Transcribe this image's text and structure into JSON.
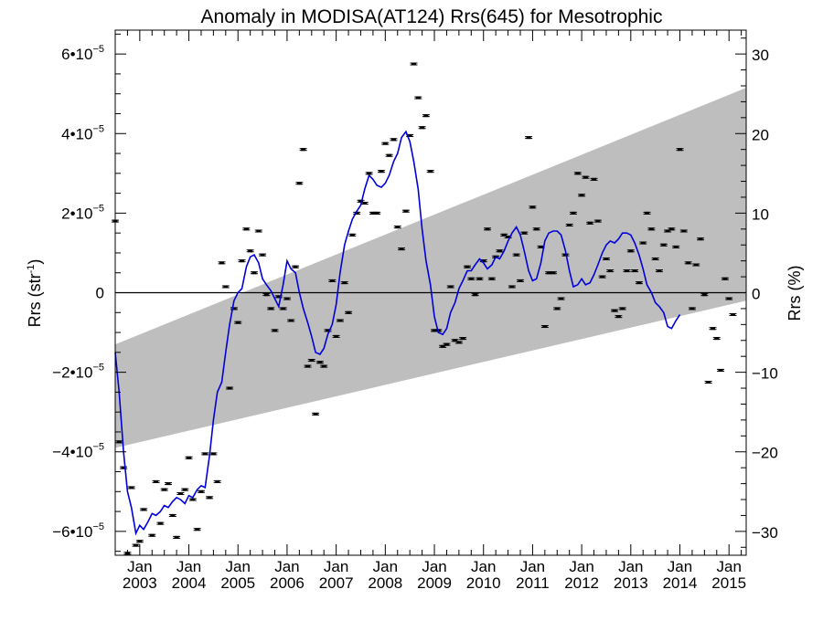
{
  "chart_data": {
    "type": "scatter",
    "title": "Anomaly in MODISA(AT124) Rrs(645) for Mesotrophic",
    "ylabel_left_main": "Rrs (str",
    "ylabel_left_exp": "-1",
    "ylabel_left_close": ")",
    "ylabel_right": "Rrs (%)",
    "x_range": [
      2002.5,
      2015.35
    ],
    "y_left_range": [
      -6.6e-05,
      6.6e-05
    ],
    "y_right_range": [
      -33,
      33
    ],
    "left_ticks": [
      {
        "v": 6e-05,
        "mant": "6•10",
        "exp": "−5"
      },
      {
        "v": 4e-05,
        "mant": "4•10",
        "exp": "−5"
      },
      {
        "v": 2e-05,
        "mant": "2•10",
        "exp": "−5"
      },
      {
        "v": 0,
        "mant": "0",
        "exp": ""
      },
      {
        "v": -2e-05,
        "mant": "−2•10",
        "exp": "−5"
      },
      {
        "v": -4e-05,
        "mant": "−4•10",
        "exp": "−5"
      },
      {
        "v": -6e-05,
        "mant": "−6•10",
        "exp": "−5"
      }
    ],
    "right_ticks": [
      {
        "v": 30,
        "label": "30"
      },
      {
        "v": 20,
        "label": "20"
      },
      {
        "v": 10,
        "label": "10"
      },
      {
        "v": 0,
        "label": "0"
      },
      {
        "v": -10,
        "label": "−10"
      },
      {
        "v": -20,
        "label": "−20"
      },
      {
        "v": -30,
        "label": "−30"
      }
    ],
    "x_ticks": [
      {
        "v": 2003,
        "month": "Jan",
        "year": "2003"
      },
      {
        "v": 2004,
        "month": "Jan",
        "year": "2004"
      },
      {
        "v": 2005,
        "month": "Jan",
        "year": "2005"
      },
      {
        "v": 2006,
        "month": "Jan",
        "year": "2006"
      },
      {
        "v": 2007,
        "month": "Jan",
        "year": "2007"
      },
      {
        "v": 2008,
        "month": "Jan",
        "year": "2008"
      },
      {
        "v": 2009,
        "month": "Jan",
        "year": "2009"
      },
      {
        "v": 2010,
        "month": "Jan",
        "year": "2010"
      },
      {
        "v": 2011,
        "month": "Jan",
        "year": "2011"
      },
      {
        "v": 2012,
        "month": "Jan",
        "year": "2012"
      },
      {
        "v": 2013,
        "month": "Jan",
        "year": "2013"
      },
      {
        "v": 2014,
        "month": "Jan",
        "year": "2014"
      },
      {
        "v": 2015,
        "month": "Jan",
        "year": "2015"
      }
    ],
    "band": {
      "upper": [
        [
          2002.5,
          -1.3e-05
        ],
        [
          2015.35,
          5.15e-05
        ]
      ],
      "lower": [
        [
          2002.5,
          -3.9e-05
        ],
        [
          2015.35,
          -2e-06
        ]
      ],
      "color": "#bebebe"
    },
    "zero_line": 0,
    "colors": {
      "line": "#0000dd",
      "points": "#000000"
    },
    "points": [
      [
        2002.5,
        1.8e-05
      ],
      [
        2002.58,
        -3.75e-05
      ],
      [
        2002.67,
        -4.4e-05
      ],
      [
        2002.75,
        -6.55e-05
      ],
      [
        2002.83,
        -4.9e-05
      ],
      [
        2002.92,
        -6.35e-05
      ],
      [
        2003.0,
        -6.25e-05
      ],
      [
        2003.08,
        -5.45e-05
      ],
      [
        2003.25,
        -6.1e-05
      ],
      [
        2003.33,
        -4.75e-05
      ],
      [
        2003.42,
        -5.8e-05
      ],
      [
        2003.5,
        -4.95e-05
      ],
      [
        2003.58,
        -4.8e-05
      ],
      [
        2003.67,
        -5.6e-05
      ],
      [
        2003.75,
        -6.15e-05
      ],
      [
        2003.83,
        -5.05e-05
      ],
      [
        2003.92,
        -4.95e-05
      ],
      [
        2004.0,
        -4.15e-05
      ],
      [
        2004.08,
        -5.2e-05
      ],
      [
        2004.17,
        -5.95e-05
      ],
      [
        2004.25,
        -5e-05
      ],
      [
        2004.33,
        -4.05e-05
      ],
      [
        2004.42,
        -5.15e-05
      ],
      [
        2004.5,
        -4.05e-05
      ],
      [
        2004.58,
        -4.75e-05
      ],
      [
        2004.67,
        7.5e-06
      ],
      [
        2004.75,
        1.5e-06
      ],
      [
        2004.83,
        -2.4e-05
      ],
      [
        2004.92,
        -4e-06
      ],
      [
        2005.0,
        -7.5e-06
      ],
      [
        2005.08,
        8e-06
      ],
      [
        2005.17,
        1.6e-05
      ],
      [
        2005.25,
        1.05e-05
      ],
      [
        2005.33,
        5e-06
      ],
      [
        2005.42,
        1.55e-05
      ],
      [
        2005.5,
        9.5e-06
      ],
      [
        2005.58,
        -5e-07
      ],
      [
        2005.67,
        -4e-06
      ],
      [
        2005.75,
        -9.5e-06
      ],
      [
        2005.83,
        -1e-06
      ],
      [
        2005.92,
        -4e-06
      ],
      [
        2006.0,
        -1.5e-06
      ],
      [
        2006.08,
        -7e-06
      ],
      [
        2006.17,
        6.5e-06
      ],
      [
        2006.25,
        2.75e-05
      ],
      [
        2006.33,
        3.6e-05
      ],
      [
        2006.42,
        -1.85e-05
      ],
      [
        2006.5,
        -1.7e-05
      ],
      [
        2006.58,
        -3.05e-05
      ],
      [
        2006.67,
        -1.75e-05
      ],
      [
        2006.75,
        -1.85e-05
      ],
      [
        2006.83,
        -9.5e-06
      ],
      [
        2006.92,
        3e-06
      ],
      [
        2007.0,
        -1.1e-05
      ],
      [
        2007.08,
        -7e-06
      ],
      [
        2007.17,
        2.5e-06
      ],
      [
        2007.25,
        -5e-06
      ],
      [
        2007.33,
        1.45e-05
      ],
      [
        2007.42,
        2e-05
      ],
      [
        2007.5,
        2.3e-05
      ],
      [
        2007.58,
        2.25e-05
      ],
      [
        2007.67,
        3e-05
      ],
      [
        2007.75,
        2e-05
      ],
      [
        2007.83,
        2e-05
      ],
      [
        2007.92,
        3.05e-05
      ],
      [
        2008.0,
        3.75e-05
      ],
      [
        2008.08,
        3.45e-05
      ],
      [
        2008.17,
        3.85e-05
      ],
      [
        2008.25,
        1.65e-05
      ],
      [
        2008.33,
        1.1e-05
      ],
      [
        2008.42,
        2.05e-05
      ],
      [
        2008.5,
        3.95e-05
      ],
      [
        2008.58,
        5.75e-05
      ],
      [
        2008.67,
        4.9e-05
      ],
      [
        2008.75,
        4.15e-05
      ],
      [
        2008.83,
        4.45e-05
      ],
      [
        2008.92,
        3.05e-05
      ],
      [
        2009.0,
        -9.5e-06
      ],
      [
        2009.08,
        -9.5e-06
      ],
      [
        2009.17,
        -1.35e-05
      ],
      [
        2009.25,
        -1.3e-05
      ],
      [
        2009.33,
        1.5e-06
      ],
      [
        2009.42,
        -1.2e-05
      ],
      [
        2009.5,
        -1.25e-05
      ],
      [
        2009.58,
        -1.15e-05
      ],
      [
        2009.67,
        6.5e-06
      ],
      [
        2009.75,
        3.5e-06
      ],
      [
        2009.83,
        -5e-07
      ],
      [
        2009.92,
        3.5e-06
      ],
      [
        2010.0,
        8e-06
      ],
      [
        2010.08,
        1.6e-05
      ],
      [
        2010.17,
        3.5e-06
      ],
      [
        2010.25,
        9e-06
      ],
      [
        2010.33,
        1.05e-05
      ],
      [
        2010.42,
        1.45e-05
      ],
      [
        2010.5,
        1.4e-05
      ],
      [
        2010.58,
        1.5e-06
      ],
      [
        2010.67,
        9.5e-06
      ],
      [
        2010.75,
        3e-06
      ],
      [
        2010.83,
        1.5e-05
      ],
      [
        2010.92,
        3.9e-05
      ],
      [
        2011.0,
        2.15e-05
      ],
      [
        2011.08,
        1.6e-05
      ],
      [
        2011.17,
        1.15e-05
      ],
      [
        2011.25,
        -8.5e-06
      ],
      [
        2011.33,
        5e-06
      ],
      [
        2011.42,
        5e-06
      ],
      [
        2011.5,
        -4e-06
      ],
      [
        2011.58,
        -1.5e-06
      ],
      [
        2011.67,
        9.5e-06
      ],
      [
        2011.75,
        1.7e-05
      ],
      [
        2011.83,
        2e-05
      ],
      [
        2011.92,
        3e-05
      ],
      [
        2012.0,
        2.45e-05
      ],
      [
        2012.08,
        2.9e-05
      ],
      [
        2012.17,
        1.75e-05
      ],
      [
        2012.25,
        2.85e-05
      ],
      [
        2012.33,
        1.8e-05
      ],
      [
        2012.42,
        4e-06
      ],
      [
        2012.5,
        8.5e-06
      ],
      [
        2012.58,
        5.5e-06
      ],
      [
        2012.67,
        -4.5e-06
      ],
      [
        2012.75,
        -6e-06
      ],
      [
        2012.83,
        -4e-06
      ],
      [
        2012.92,
        5.5e-06
      ],
      [
        2013.0,
        1.05e-05
      ],
      [
        2013.08,
        5.5e-06
      ],
      [
        2013.17,
        2.5e-06
      ],
      [
        2013.25,
        1.25e-05
      ],
      [
        2013.33,
        2e-05
      ],
      [
        2013.42,
        1.6e-05
      ],
      [
        2013.5,
        8.5e-06
      ],
      [
        2013.58,
        5.5e-06
      ],
      [
        2013.67,
        1.2e-05
      ],
      [
        2013.75,
        1.55e-05
      ],
      [
        2013.83,
        1.6e-05
      ],
      [
        2013.92,
        1.15e-05
      ],
      [
        2014.0,
        3.6e-05
      ],
      [
        2014.08,
        1.55e-05
      ],
      [
        2014.17,
        7.5e-06
      ],
      [
        2014.25,
        -4e-06
      ],
      [
        2014.33,
        7e-06
      ],
      [
        2014.42,
        1.35e-05
      ],
      [
        2014.5,
        -5e-07
      ],
      [
        2014.58,
        -2.25e-05
      ],
      [
        2014.67,
        -9e-06
      ],
      [
        2014.75,
        -1.15e-05
      ],
      [
        2014.83,
        -1.95e-05
      ],
      [
        2014.92,
        3.5e-06
      ],
      [
        2015.0,
        -1.5e-06
      ],
      [
        2015.08,
        -5.5e-06
      ]
    ],
    "line": [
      [
        2002.5,
        -1.5e-05
      ],
      [
        2002.58,
        -2.5e-05
      ],
      [
        2002.67,
        -4e-05
      ],
      [
        2002.75,
        -5e-05
      ],
      [
        2002.83,
        -5.4e-05
      ],
      [
        2002.92,
        -6.05e-05
      ],
      [
        2003.0,
        -5.85e-05
      ],
      [
        2003.08,
        -5.95e-05
      ],
      [
        2003.17,
        -5.75e-05
      ],
      [
        2003.25,
        -5.55e-05
      ],
      [
        2003.33,
        -5.6e-05
      ],
      [
        2003.42,
        -5.5e-05
      ],
      [
        2003.5,
        -5.35e-05
      ],
      [
        2003.58,
        -5.4e-05
      ],
      [
        2003.67,
        -5.25e-05
      ],
      [
        2003.75,
        -5.15e-05
      ],
      [
        2003.83,
        -5.2e-05
      ],
      [
        2003.92,
        -5.3e-05
      ],
      [
        2004.0,
        -5.1e-05
      ],
      [
        2004.08,
        -5.15e-05
      ],
      [
        2004.17,
        -4.95e-05
      ],
      [
        2004.25,
        -4.85e-05
      ],
      [
        2004.33,
        -4.9e-05
      ],
      [
        2004.42,
        -4.1e-05
      ],
      [
        2004.5,
        -3.2e-05
      ],
      [
        2004.58,
        -2.5e-05
      ],
      [
        2004.67,
        -2.25e-05
      ],
      [
        2004.75,
        -1.5e-05
      ],
      [
        2004.83,
        -8e-06
      ],
      [
        2004.92,
        -2e-06
      ],
      [
        2005.0,
        0.0
      ],
      [
        2005.08,
        1e-06
      ],
      [
        2005.17,
        6.5e-06
      ],
      [
        2005.25,
        9e-06
      ],
      [
        2005.33,
        9.5e-06
      ],
      [
        2005.42,
        7.5e-06
      ],
      [
        2005.5,
        3.5e-06
      ],
      [
        2005.58,
        2e-06
      ],
      [
        2005.67,
        5e-07
      ],
      [
        2005.75,
        -1.5e-06
      ],
      [
        2005.83,
        -3.5e-06
      ],
      [
        2005.92,
        2e-06
      ],
      [
        2006.0,
        8e-06
      ],
      [
        2006.08,
        6e-06
      ],
      [
        2006.17,
        5e-06
      ],
      [
        2006.25,
        0.0
      ],
      [
        2006.33,
        -4e-06
      ],
      [
        2006.42,
        -7.5e-06
      ],
      [
        2006.5,
        -1.1e-05
      ],
      [
        2006.58,
        -1.5e-05
      ],
      [
        2006.67,
        -1.55e-05
      ],
      [
        2006.75,
        -1.4e-05
      ],
      [
        2006.83,
        -1.05e-05
      ],
      [
        2006.92,
        -8e-06
      ],
      [
        2007.0,
        -3e-06
      ],
      [
        2007.08,
        5e-06
      ],
      [
        2007.17,
        1.2e-05
      ],
      [
        2007.25,
        1.55e-05
      ],
      [
        2007.33,
        1.85e-05
      ],
      [
        2007.42,
        2.05e-05
      ],
      [
        2007.5,
        2.2e-05
      ],
      [
        2007.58,
        2.6e-05
      ],
      [
        2007.67,
        2.95e-05
      ],
      [
        2007.75,
        2.85e-05
      ],
      [
        2007.83,
        2.7e-05
      ],
      [
        2007.92,
        2.65e-05
      ],
      [
        2008.0,
        2.75e-05
      ],
      [
        2008.08,
        2.95e-05
      ],
      [
        2008.17,
        3.3e-05
      ],
      [
        2008.25,
        3.5e-05
      ],
      [
        2008.33,
        3.9e-05
      ],
      [
        2008.42,
        4.05e-05
      ],
      [
        2008.5,
        3.8e-05
      ],
      [
        2008.58,
        3.3e-05
      ],
      [
        2008.67,
        2.6e-05
      ],
      [
        2008.75,
        1.6e-05
      ],
      [
        2008.83,
        8e-06
      ],
      [
        2008.92,
        2e-06
      ],
      [
        2009.0,
        -6e-06
      ],
      [
        2009.08,
        -1e-05
      ],
      [
        2009.17,
        -1.05e-05
      ],
      [
        2009.25,
        -9e-06
      ],
      [
        2009.33,
        -5e-06
      ],
      [
        2009.42,
        -2.5e-06
      ],
      [
        2009.5,
        1e-06
      ],
      [
        2009.58,
        3e-06
      ],
      [
        2009.67,
        5.5e-06
      ],
      [
        2009.75,
        5.5e-06
      ],
      [
        2009.83,
        7e-06
      ],
      [
        2009.92,
        8.5e-06
      ],
      [
        2010.0,
        7.5e-06
      ],
      [
        2010.08,
        6e-06
      ],
      [
        2010.17,
        7e-06
      ],
      [
        2010.25,
        9e-06
      ],
      [
        2010.33,
        8.5e-06
      ],
      [
        2010.42,
        1.05e-05
      ],
      [
        2010.5,
        1.3e-05
      ],
      [
        2010.58,
        1.5e-05
      ],
      [
        2010.67,
        1.65e-05
      ],
      [
        2010.75,
        1.45e-05
      ],
      [
        2010.83,
        1.05e-05
      ],
      [
        2010.92,
        5.5e-06
      ],
      [
        2011.0,
        3e-06
      ],
      [
        2011.08,
        3.5e-06
      ],
      [
        2011.17,
        7.5e-06
      ],
      [
        2011.25,
        1.3e-05
      ],
      [
        2011.33,
        1.5e-05
      ],
      [
        2011.42,
        1.55e-05
      ],
      [
        2011.5,
        1.55e-05
      ],
      [
        2011.58,
        1.45e-05
      ],
      [
        2011.67,
        1.05e-05
      ],
      [
        2011.75,
        5.5e-06
      ],
      [
        2011.83,
        1.5e-06
      ],
      [
        2011.92,
        2e-06
      ],
      [
        2012.0,
        3.5e-06
      ],
      [
        2012.08,
        2e-06
      ],
      [
        2012.17,
        2.5e-06
      ],
      [
        2012.25,
        4.5e-06
      ],
      [
        2012.33,
        7e-06
      ],
      [
        2012.42,
        1e-05
      ],
      [
        2012.5,
        1.2e-05
      ],
      [
        2012.58,
        1.3e-05
      ],
      [
        2012.67,
        1.25e-05
      ],
      [
        2012.75,
        1.35e-05
      ],
      [
        2012.83,
        1.5e-05
      ],
      [
        2012.92,
        1.5e-05
      ],
      [
        2013.0,
        1.45e-05
      ],
      [
        2013.08,
        1.25e-05
      ],
      [
        2013.17,
        9.5e-06
      ],
      [
        2013.25,
        6e-06
      ],
      [
        2013.33,
        2e-06
      ],
      [
        2013.42,
        0.0
      ],
      [
        2013.5,
        -2.5e-06
      ],
      [
        2013.58,
        -3.5e-06
      ],
      [
        2013.67,
        -5e-06
      ],
      [
        2013.75,
        -8.5e-06
      ],
      [
        2013.83,
        -9e-06
      ],
      [
        2013.92,
        -7e-06
      ],
      [
        2014.0,
        -5.5e-06
      ]
    ]
  }
}
